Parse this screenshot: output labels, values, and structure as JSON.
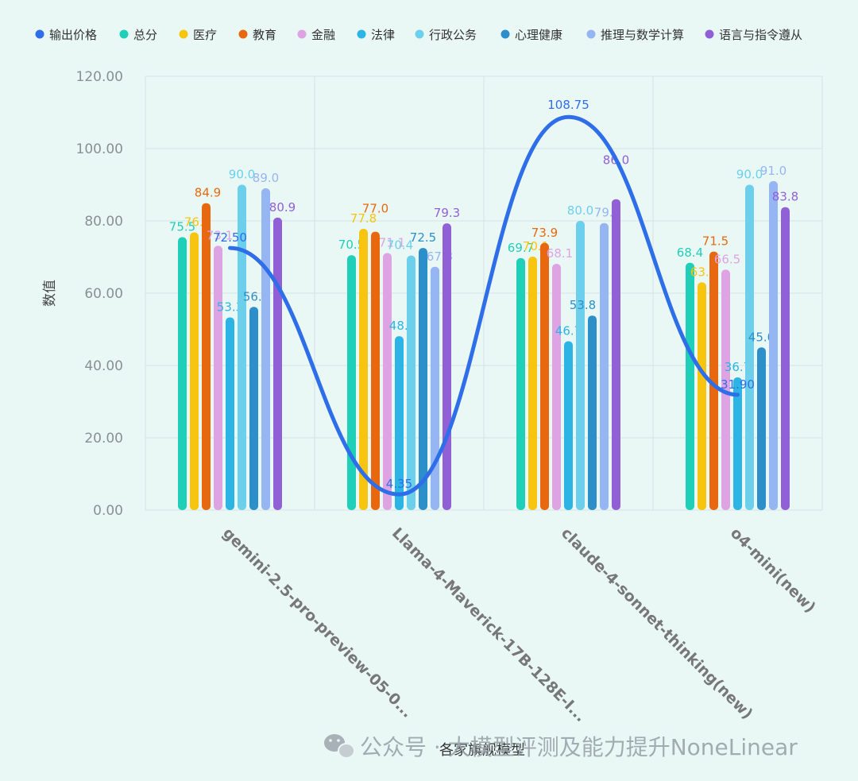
{
  "chart_data": {
    "type": "bar",
    "categories": [
      "gemini-2.5-pro-preview-05-0...",
      "Llama-4-Maverick-17B-128E-I...",
      "claude-4-sonnet-thinking(new)",
      "o4-mini(new)"
    ],
    "series": [
      {
        "name": "总分",
        "color": "#1fcfb8",
        "values": [
          75.5,
          70.5,
          69.7,
          68.4
        ]
      },
      {
        "name": "医疗",
        "color": "#f7c410",
        "values": [
          76.8,
          77.8,
          70.1,
          63.0
        ]
      },
      {
        "name": "教育",
        "color": "#e8680f",
        "values": [
          84.9,
          77.0,
          73.9,
          71.5
        ]
      },
      {
        "name": "金融",
        "color": "#dea3e2",
        "values": [
          73.1,
          71.1,
          68.1,
          66.5
        ]
      },
      {
        "name": "法律",
        "color": "#2bb4e4",
        "values": [
          53.3,
          48.1,
          46.7,
          36.7
        ]
      },
      {
        "name": "行政公务",
        "color": "#6cd0ec",
        "values": [
          90.0,
          70.4,
          80.0,
          90.0
        ]
      },
      {
        "name": "心理健康",
        "color": "#2d8fc9",
        "values": [
          56.2,
          72.5,
          53.8,
          45.0
        ]
      },
      {
        "name": "推理与数学计算",
        "color": "#95b5f3",
        "values": [
          89.0,
          67.3,
          79.4,
          91.0
        ]
      },
      {
        "name": "语言与指令遵从",
        "color": "#9160d6",
        "values": [
          80.9,
          79.3,
          86.0,
          83.8
        ]
      }
    ],
    "line_series": {
      "name": "输出价格",
      "color": "#2f6ee9",
      "values": [
        72.5,
        4.35,
        108.75,
        31.9
      ]
    },
    "y_ticks": [
      "0.00",
      "20.00",
      "40.00",
      "60.00",
      "80.00",
      "100.00",
      "120.00"
    ],
    "ylim": [
      0,
      120
    ],
    "ylabel": "数值",
    "xlabel": "各家旗舰模型",
    "legend_position": "top",
    "grid": true
  },
  "watermark": {
    "logo_icon": "wechat-icon",
    "text": "公众号 · 大模型评测及能力提升NoneLinear"
  }
}
